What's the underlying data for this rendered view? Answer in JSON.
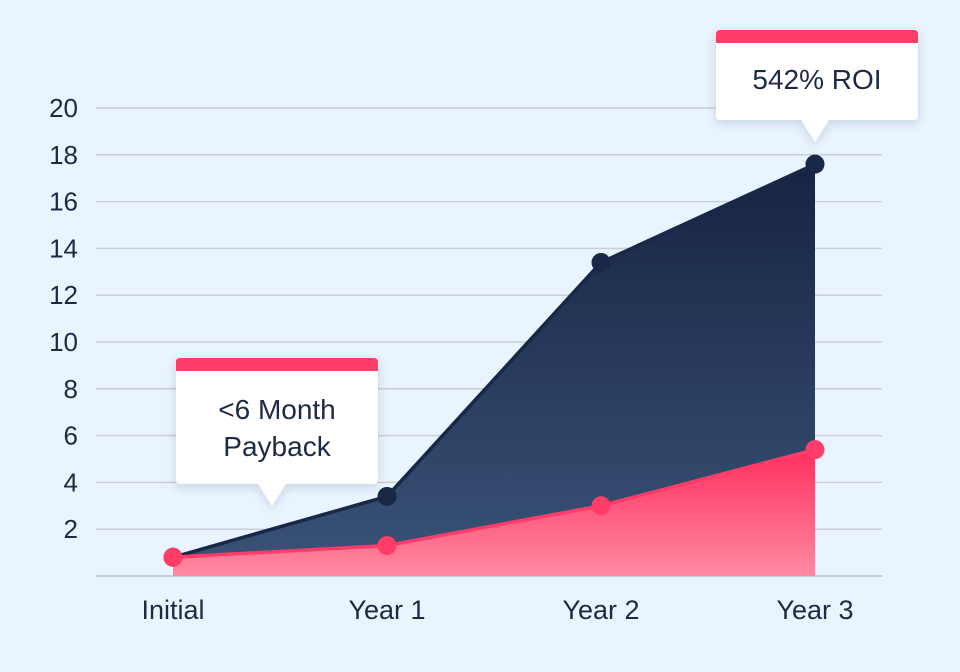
{
  "chart_data": {
    "type": "area",
    "categories": [
      "Initial",
      "Year 1",
      "Year 2",
      "Year 3"
    ],
    "series": [
      {
        "values": [
          0.8,
          3.4,
          13.4,
          17.6
        ],
        "color": "#1a2847"
      },
      {
        "values": [
          0.8,
          1.3,
          3.0,
          5.4
        ],
        "color": "#ff3d68"
      }
    ],
    "ylim": [
      0,
      20
    ],
    "yticks": [
      2,
      4,
      6,
      8,
      10,
      12,
      14,
      16,
      18,
      20
    ],
    "grid": true,
    "annotations": [
      {
        "lines": [
          "<6 Month",
          "Payback"
        ],
        "category": "Initial",
        "accent": "#ff3d68"
      },
      {
        "lines": [
          "542% ROI"
        ],
        "category": "Year 3",
        "accent": "#ff3d68"
      }
    ]
  }
}
